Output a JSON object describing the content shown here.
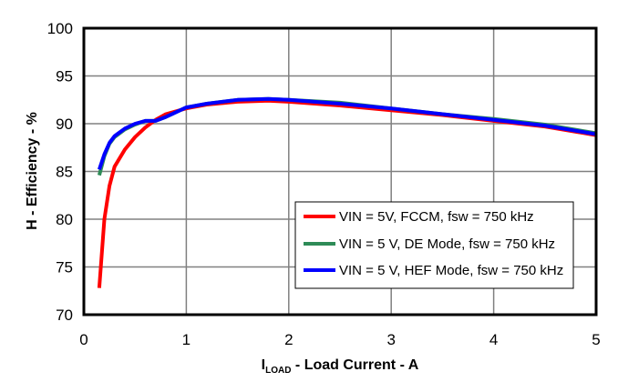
{
  "chart_data": {
    "type": "line",
    "title": "",
    "xlabel": "I_LOAD - Load Current - A",
    "xlabel_main": "I",
    "xlabel_sub": "LOAD",
    "xlabel_rest": " - Load Current - A",
    "ylabel": "H - Efficiency - %",
    "xlim": [
      0,
      5
    ],
    "ylim": [
      70,
      100
    ],
    "xticks": [
      0,
      1,
      2,
      3,
      4,
      5
    ],
    "yticks": [
      70,
      75,
      80,
      85,
      90,
      95,
      100
    ],
    "grid": true,
    "legend_position": "lower right (inside)",
    "series": [
      {
        "name": "VIN = 5V, FCCM, fsw = 750 kHz",
        "color": "#ff0000",
        "x": [
          0.15,
          0.2,
          0.25,
          0.3,
          0.4,
          0.5,
          0.6,
          0.7,
          0.8,
          1.0,
          1.2,
          1.5,
          1.8,
          2.0,
          2.5,
          3.0,
          3.5,
          4.0,
          4.5,
          5.0
        ],
        "y": [
          72.8,
          80.0,
          83.5,
          85.5,
          87.3,
          88.6,
          89.6,
          90.4,
          91.0,
          91.6,
          92.0,
          92.3,
          92.4,
          92.3,
          91.9,
          91.4,
          90.9,
          90.3,
          89.7,
          88.8
        ]
      },
      {
        "name": "VIN = 5 V, DE Mode, fsw = 750 kHz",
        "color": "#2e8b57",
        "x": [
          0.15,
          0.2,
          0.25,
          0.3,
          0.4,
          0.5,
          0.6,
          0.7,
          0.8,
          1.0,
          1.2,
          1.5,
          1.8,
          2.0,
          2.5,
          3.0,
          3.5,
          4.0,
          4.5,
          5.0
        ],
        "y": [
          84.6,
          86.6,
          87.9,
          88.6,
          89.4,
          89.9,
          90.3,
          90.3,
          90.7,
          91.7,
          92.1,
          92.5,
          92.6,
          92.5,
          92.2,
          91.6,
          91.0,
          90.5,
          89.9,
          89.0
        ]
      },
      {
        "name": "VIN = 5 V, HEF Mode, fsw = 750 kHz",
        "color": "#0000ff",
        "x": [
          0.15,
          0.2,
          0.25,
          0.3,
          0.4,
          0.5,
          0.6,
          0.7,
          0.8,
          1.0,
          1.2,
          1.5,
          1.8,
          2.0,
          2.5,
          3.0,
          3.5,
          4.0,
          4.5,
          5.0
        ],
        "y": [
          85.2,
          86.8,
          88.0,
          88.7,
          89.5,
          90.0,
          90.3,
          90.3,
          90.7,
          91.7,
          92.1,
          92.5,
          92.6,
          92.5,
          92.1,
          91.6,
          91.0,
          90.4,
          89.8,
          88.9
        ]
      }
    ]
  }
}
